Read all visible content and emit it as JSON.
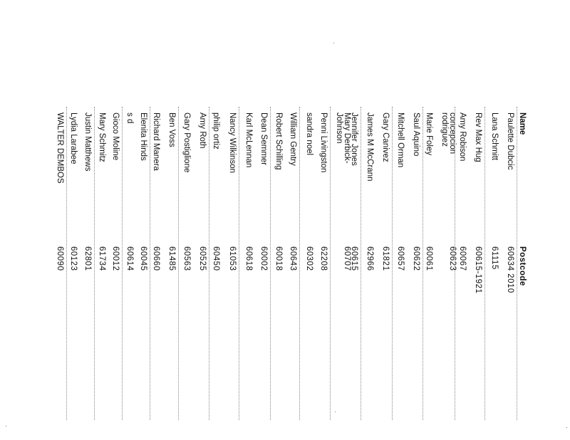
{
  "table": {
    "headers": {
      "name": "Name",
      "postcode": "Postcode"
    },
    "rows": [
      {
        "name": "Paulette Dubcic",
        "postcode": "60634 2010"
      },
      {
        "name": "Lana Schmitt",
        "postcode": "61115"
      },
      {
        "name": "Rev Max Hug",
        "postcode": "60615-1921"
      },
      {
        "name": "Amy Robison",
        "postcode": "60067"
      },
      {
        "name": "concepcion\nrodriguez",
        "postcode": "60623"
      },
      {
        "name": "Marie Foley",
        "postcode": "60061"
      },
      {
        "name": "Saul Aquino",
        "postcode": "60622"
      },
      {
        "name": "Mitchell Orman",
        "postcode": "60657"
      },
      {
        "name": "Gary Canivez",
        "postcode": "61821"
      },
      {
        "name": "James M McCrann",
        "postcode": "62966"
      },
      {
        "name": "Jennifer Jones",
        "postcode": "60615"
      },
      {
        "name": "Mary Derbick-\nJohnson",
        "postcode": "60707"
      },
      {
        "name": "Penni Livingston",
        "postcode": "62208"
      },
      {
        "name": "sandra noel",
        "postcode": "60302"
      },
      {
        "name": "William Gentry",
        "postcode": "60643"
      },
      {
        "name": "Robert Schilling",
        "postcode": "60018"
      },
      {
        "name": "Dean Semmer",
        "postcode": "60002"
      },
      {
        "name": "Karl McLennan",
        "postcode": "60618"
      },
      {
        "name": "Nancy Wilkinson",
        "postcode": "61053"
      },
      {
        "name": "philip ortiz",
        "postcode": "60450"
      },
      {
        "name": "Amy Roth",
        "postcode": "60525"
      },
      {
        "name": "Gary Postiglione",
        "postcode": "60563"
      },
      {
        "name": "Ben Voss",
        "postcode": "61485"
      },
      {
        "name": "Richard Manera",
        "postcode": "60660"
      },
      {
        "name": "Elenita Hinds",
        "postcode": "60045"
      },
      {
        "name": "s d",
        "postcode": "60614"
      },
      {
        "name": "Gioco Moline",
        "postcode": "60012"
      },
      {
        "name": "Mary Schmitz",
        "postcode": "61734"
      },
      {
        "name": "Justin Matthews",
        "postcode": "62801"
      },
      {
        "name": "Lydia Larabee",
        "postcode": "60123"
      },
      {
        "name": "WALTER DEMBOS",
        "postcode": "60090"
      }
    ]
  }
}
